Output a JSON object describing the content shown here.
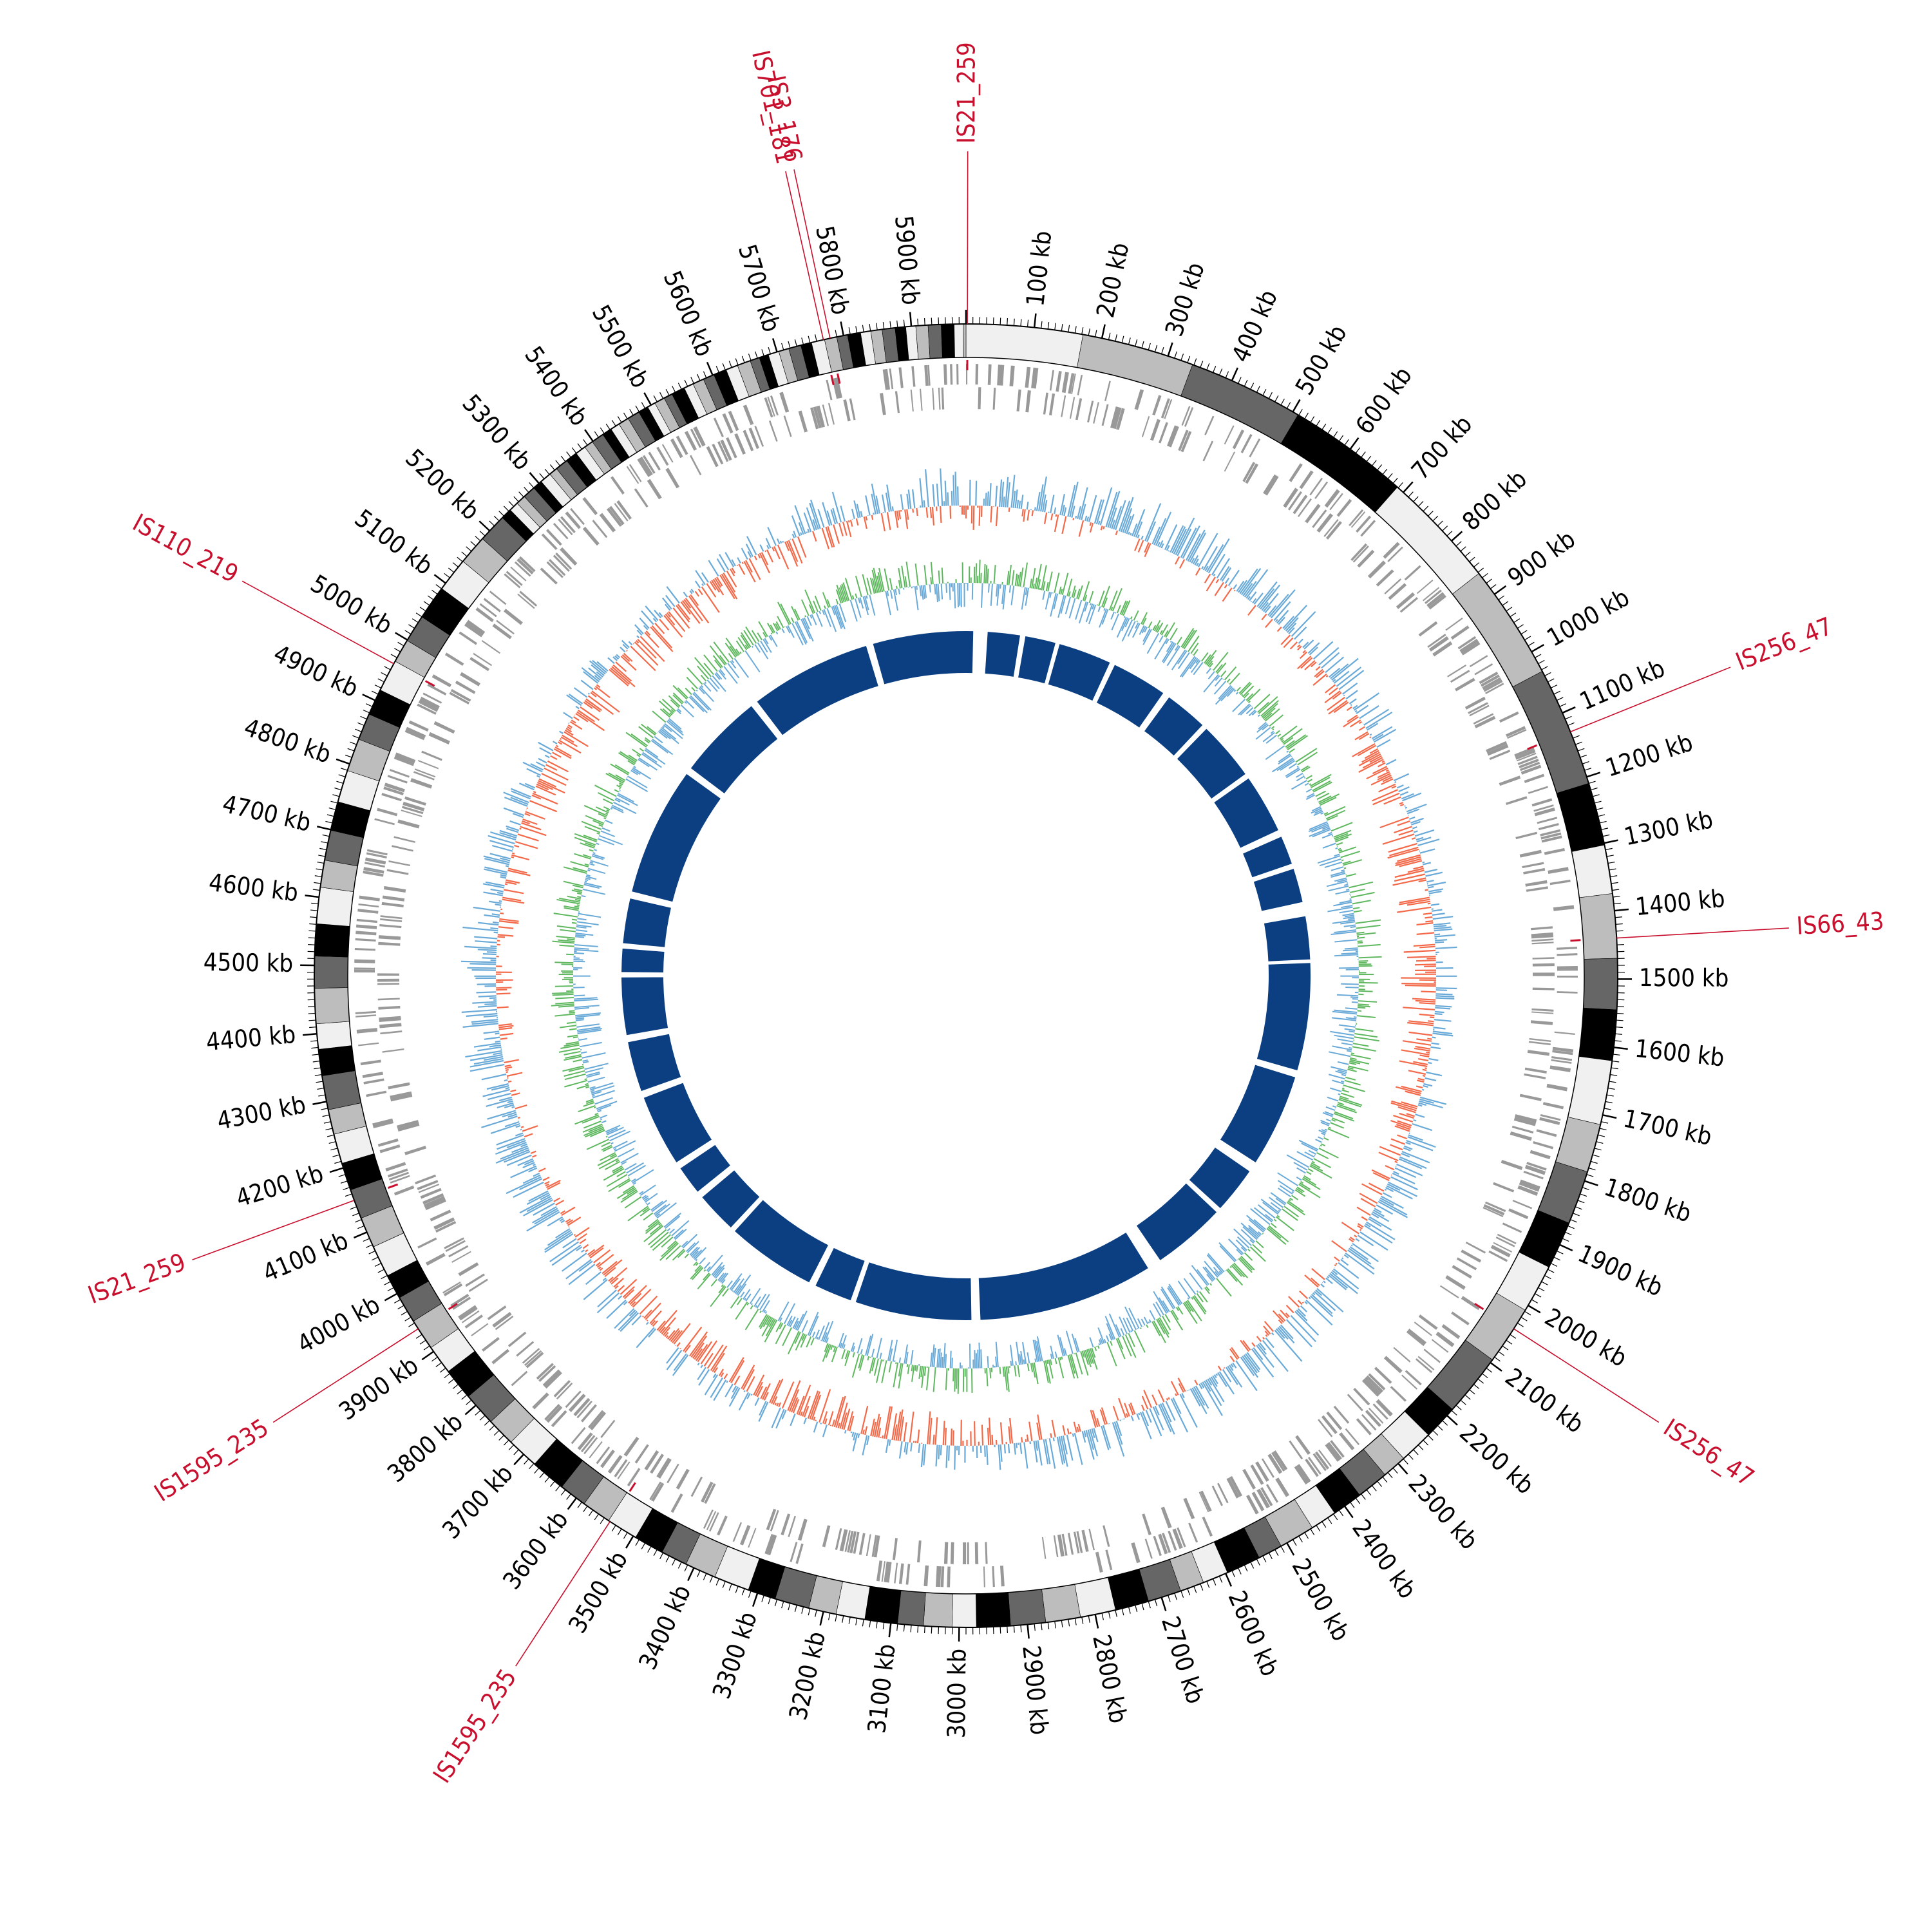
{
  "genome": {
    "length_kb": 5980,
    "tick_major_kb": 100,
    "tick_minor_kb": 10,
    "tick_labels": [
      "100 kb",
      "200 kb",
      "300 kb",
      "400 kb",
      "500 kb",
      "600 kb",
      "700 kb",
      "800 kb",
      "900 kb",
      "1000 kb",
      "1100 kb",
      "1200 kb",
      "1300 kb",
      "1400 kb",
      "1500 kb",
      "1600 kb",
      "1700 kb",
      "1800 kb",
      "1900 kb",
      "2000 kb",
      "2100 kb",
      "2200 kb",
      "2300 kb",
      "2400 kb",
      "2500 kb",
      "2600 kb",
      "2700 kb",
      "2800 kb",
      "2900 kb",
      "3000 kb",
      "3100 kb",
      "3200 kb",
      "3300 kb",
      "3400 kb",
      "3500 kb",
      "3600 kb",
      "3700 kb",
      "3800 kb",
      "3900 kb",
      "4000 kb",
      "4100 kb",
      "4200 kb",
      "4300 kb",
      "4400 kb",
      "4500 kb",
      "4600 kb",
      "4700 kb",
      "4800 kb",
      "4900 kb",
      "5000 kb",
      "5100 kb",
      "5200 kb",
      "5300 kb",
      "5400 kb",
      "5500 kb",
      "5600 kb",
      "5700 kb",
      "5800 kb",
      "5900 kb"
    ]
  },
  "insertion_sequences": [
    {
      "name": "IS21_259",
      "position_kb": 2
    },
    {
      "name": "IS3_176",
      "position_kb": 5780
    },
    {
      "name": "IS701_181",
      "position_kb": 5770
    },
    {
      "name": "IS256_47",
      "position_kb": 1130
    },
    {
      "name": "IS66_43",
      "position_kb": 1440
    },
    {
      "name": "IS256_47",
      "position_kb": 2040
    },
    {
      "name": "IS110_219",
      "position_kb": 4960
    },
    {
      "name": "IS21_259",
      "position_kb": 4150
    },
    {
      "name": "IS1595_235",
      "position_kb": 3940
    },
    {
      "name": "IS1595_235",
      "position_kb": 3540
    }
  ],
  "colors": {
    "is_label": "#c8102e",
    "gene_track": "#999999",
    "gc_skew_neg": "#f36a4a",
    "gc_skew_pos": "#6aaad8",
    "gc_content_pos": "#5fb85f",
    "gc_content_neg": "#6aaad8",
    "inner_ring": "#0b3f82",
    "ideogram_shades": [
      "#f0f0f0",
      "#bdbdbd",
      "#666666",
      "#000000"
    ]
  }
}
